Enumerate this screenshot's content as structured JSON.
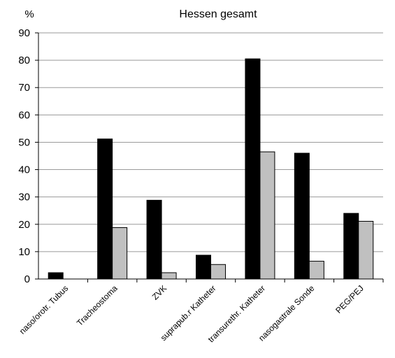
{
  "chart_data": {
    "type": "bar",
    "title": "Hessen gesamt",
    "ylabel": "%",
    "xlabel": "",
    "ylim": [
      0,
      90
    ],
    "yticks": [
      0,
      10,
      20,
      30,
      40,
      50,
      60,
      70,
      80,
      90
    ],
    "grid": true,
    "legend": "none",
    "categories": [
      "naso/orotr. Tubus",
      "Tracheostoma",
      "ZVK",
      "suprapub.r Katheter",
      "transurethr. Katheter",
      "nasogastrale Sonde",
      "PEG/PEJ"
    ],
    "series": [
      {
        "values": [
          2.3,
          51.2,
          28.8,
          8.7,
          80.5,
          46.0,
          24.0
        ],
        "color": "#000000"
      },
      {
        "values": [
          0,
          18.8,
          2.3,
          5.3,
          46.5,
          6.5,
          21.1
        ],
        "color": "#c0c0c0"
      }
    ]
  }
}
